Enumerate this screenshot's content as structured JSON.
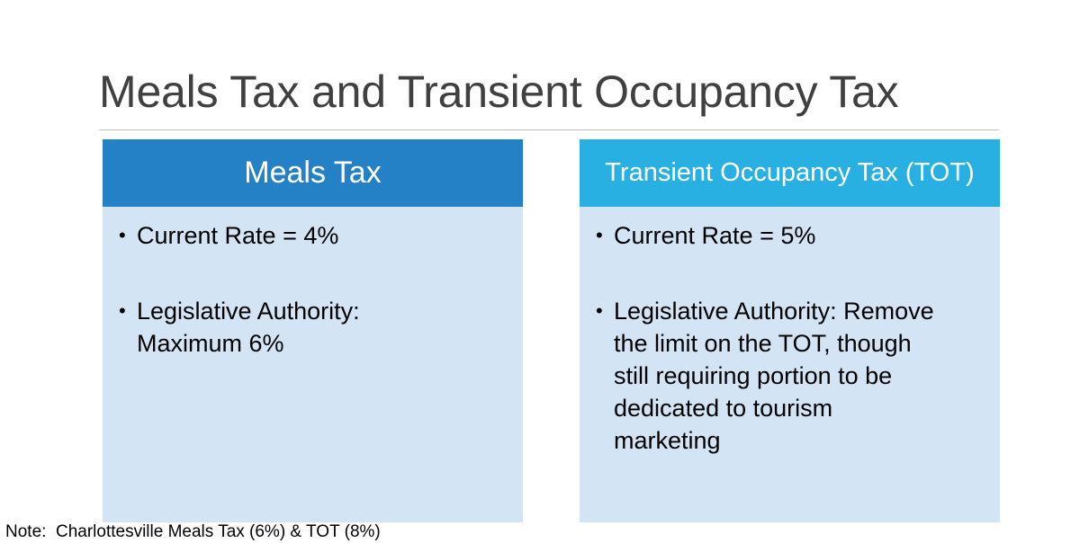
{
  "slide": {
    "title": "Meals Tax and Transient Occupancy Tax",
    "note": "Note:  Charlottesville Meals Tax (6%) & TOT (8%)"
  },
  "panels": [
    {
      "header": "Meals Tax",
      "header_color": "#2581c6",
      "bullets": [
        "Current Rate = 4%",
        "Legislative Authority:\nMaximum 6%"
      ]
    },
    {
      "header": "Transient Occupancy Tax (TOT)",
      "header_color": "#28b0e3",
      "bullets": [
        "Current Rate = 5%",
        "Legislative Authority:  Remove\nthe limit on the TOT, though\nstill requiring portion to be\ndedicated to tourism\nmarketing"
      ]
    }
  ],
  "colors": {
    "panel_body": "#d3e4f4",
    "title_text": "#404040"
  }
}
